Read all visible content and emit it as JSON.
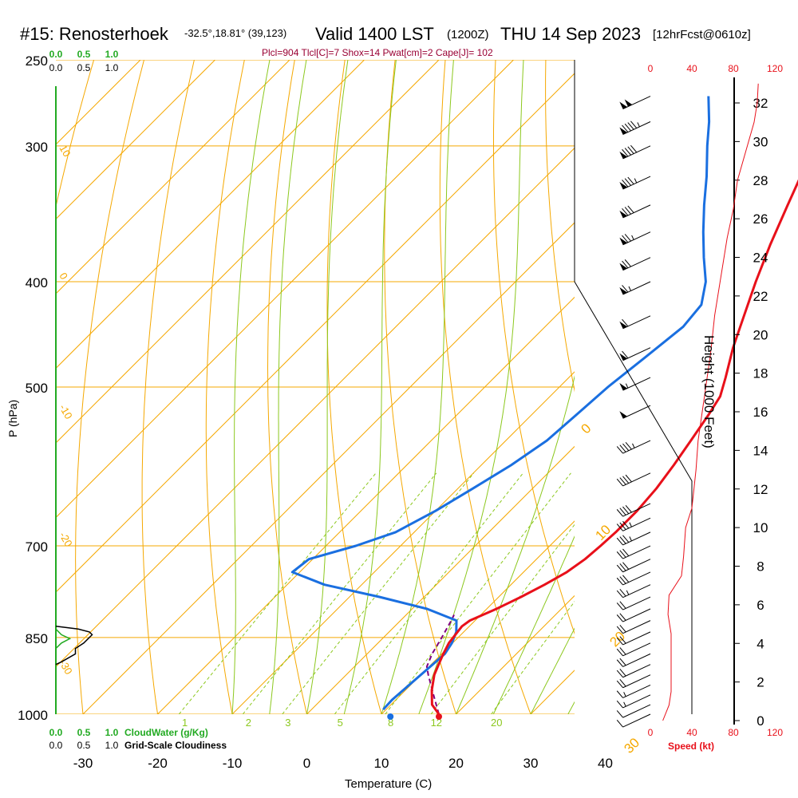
{
  "header": {
    "station": "#15: Renosterhoek",
    "location": "-32.5°,18.81° (39,123)",
    "valid": "Valid 1400 LST",
    "valid_z": "(1200Z)",
    "date": "THU 14 Sep 2023",
    "forecast": "[12hrFcst@0610z]",
    "parcel_info": "Plcl=904 Tlcl[C]=7 Shox=14 Pwat[cm]=2 Cape[J]= 102"
  },
  "colors": {
    "temperature": "#e8101a",
    "dewpoint": "#1a6fe0",
    "isotherm": "#f5a800",
    "dry_adiabat": "#f5a800",
    "moist_adiabat": "#8cc81e",
    "mixing_ratio": "#8cc81e",
    "parcel": "#800080",
    "cloud_water": "#22aa22",
    "speed": "#e8101a"
  },
  "chart_data": {
    "type": "skew-t",
    "xlabel": "Temperature (C)",
    "ylabel": "P (hPa)",
    "right_label": "Height (1000 Feet)",
    "x_ticks": [
      "-30",
      "-20",
      "-10",
      "0",
      "10",
      "20",
      "30",
      "40"
    ],
    "x_tick_values": [
      -30,
      -20,
      -10,
      0,
      10,
      20,
      30,
      40
    ],
    "p_ticks": [
      "250",
      "300",
      "400",
      "500",
      "700",
      "850",
      "1000"
    ],
    "p_tick_values": [
      250,
      300,
      400,
      500,
      700,
      850,
      1000
    ],
    "height_ticks": [
      "0",
      "2",
      "4",
      "6",
      "8",
      "10",
      "12",
      "14",
      "16",
      "18",
      "20",
      "22",
      "24",
      "26",
      "28",
      "30",
      "32"
    ],
    "height_tick_values": [
      0,
      2,
      4,
      6,
      8,
      10,
      12,
      14,
      16,
      18,
      20,
      22,
      24,
      26,
      28,
      30,
      32
    ],
    "speed_ticks_top": [
      "0",
      "40",
      "80",
      "120"
    ],
    "speed_ticks_bottom": [
      "0",
      "40",
      "80",
      "120"
    ],
    "speed_tick_values": [
      0,
      40,
      80,
      120
    ],
    "speed_label": "Speed (kt)",
    "cloud_scale_top": [
      "0.0",
      "0.5",
      "1.0"
    ],
    "cloud_scale_top2": [
      "0.0",
      "0.5",
      "1.0"
    ],
    "cloud_scale_bottom": [
      "0.0",
      "0.5",
      "1.0"
    ],
    "cloud_scale_bottom2": [
      "0.0",
      "0.5",
      "1.0"
    ],
    "cloud_water_label": "CloudWater (g/Kg)",
    "cloudiness_label": "Grid-Scale Cloudiness",
    "temperature_profile": [
      {
        "p": 1000,
        "t": 17.7
      },
      {
        "p": 980,
        "t": 15.5
      },
      {
        "p": 950,
        "t": 13.5
      },
      {
        "p": 920,
        "t": 11.8
      },
      {
        "p": 900,
        "t": 11.0
      },
      {
        "p": 880,
        "t": 10.2
      },
      {
        "p": 860,
        "t": 9.5
      },
      {
        "p": 830,
        "t": 9.0
      },
      {
        "p": 820,
        "t": 9.3
      },
      {
        "p": 800,
        "t": 11.3
      },
      {
        "p": 780,
        "t": 13.0
      },
      {
        "p": 760,
        "t": 14.5
      },
      {
        "p": 740,
        "t": 15.8
      },
      {
        "p": 720,
        "t": 16.5
      },
      {
        "p": 700,
        "t": 16.8
      },
      {
        "p": 680,
        "t": 17.0
      },
      {
        "p": 650,
        "t": 17.0
      },
      {
        "p": 620,
        "t": 16.6
      },
      {
        "p": 590,
        "t": 15.8
      },
      {
        "p": 560,
        "t": 14.8
      },
      {
        "p": 530,
        "t": 13.7
      },
      {
        "p": 510,
        "t": 12.8
      },
      {
        "p": 490,
        "t": 11.0
      },
      {
        "p": 460,
        "t": 8.0
      },
      {
        "p": 430,
        "t": 5.2
      },
      {
        "p": 400,
        "t": 2.2
      },
      {
        "p": 370,
        "t": -0.8
      },
      {
        "p": 340,
        "t": -3.8
      },
      {
        "p": 320,
        "t": -5.9
      },
      {
        "p": 300,
        "t": -7.2
      },
      {
        "p": 285,
        "t": -8.0
      },
      {
        "p": 270,
        "t": -9.2
      }
    ],
    "dewpoint_profile": [
      {
        "p": 990,
        "t": 9.6
      },
      {
        "p": 970,
        "t": 9.5
      },
      {
        "p": 940,
        "t": 9.8
      },
      {
        "p": 900,
        "t": 10.2
      },
      {
        "p": 880,
        "t": 10.4
      },
      {
        "p": 860,
        "t": 9.9
      },
      {
        "p": 840,
        "t": 9.0
      },
      {
        "p": 820,
        "t": 7.5
      },
      {
        "p": 800,
        "t": 2.0
      },
      {
        "p": 780,
        "t": -6.0
      },
      {
        "p": 760,
        "t": -15.0
      },
      {
        "p": 740,
        "t": -21.0
      },
      {
        "p": 720,
        "t": -20.5
      },
      {
        "p": 700,
        "t": -16.0
      },
      {
        "p": 680,
        "t": -12.5
      },
      {
        "p": 650,
        "t": -10.0
      },
      {
        "p": 620,
        "t": -8.0
      },
      {
        "p": 590,
        "t": -6.0
      },
      {
        "p": 560,
        "t": -4.5
      },
      {
        "p": 530,
        "t": -4.0
      },
      {
        "p": 500,
        "t": -3.5
      },
      {
        "p": 470,
        "t": -2.5
      },
      {
        "p": 440,
        "t": -1.5
      },
      {
        "p": 420,
        "t": -2.0
      },
      {
        "p": 400,
        "t": -4.5
      },
      {
        "p": 380,
        "t": -8.0
      },
      {
        "p": 360,
        "t": -11.5
      },
      {
        "p": 340,
        "t": -15.0
      },
      {
        "p": 320,
        "t": -18.5
      },
      {
        "p": 300,
        "t": -22.5
      },
      {
        "p": 285,
        "t": -25.5
      },
      {
        "p": 270,
        "t": -29.0
      }
    ],
    "parcel_profile": [
      {
        "p": 1000,
        "t": 17.7
      },
      {
        "p": 960,
        "t": 14.4
      },
      {
        "p": 920,
        "t": 11.0
      },
      {
        "p": 904,
        "t": 9.7
      },
      {
        "p": 880,
        "t": 8.7
      },
      {
        "p": 850,
        "t": 7.8
      },
      {
        "p": 820,
        "t": 6.8
      },
      {
        "p": 810,
        "t": 6.4
      }
    ],
    "surface_temp_marker": {
      "p": 1000,
      "t": 17.7
    },
    "surface_dew_marker": {
      "p": 1000,
      "t": 11.2
    },
    "isotherm_labels": [
      {
        "t": 0,
        "text": "0"
      },
      {
        "t": 10,
        "text": "10"
      },
      {
        "t": 20,
        "text": "20"
      },
      {
        "t": 30,
        "text": "30"
      }
    ],
    "dry_adiabat_labels": [
      {
        "theta": -10,
        "text": "10"
      },
      {
        "theta": 0,
        "text": "0"
      },
      {
        "theta": 10,
        "text": "-10"
      },
      {
        "theta": 20,
        "text": "-20"
      },
      {
        "theta": 30,
        "text": "-30"
      }
    ],
    "mixing_ratio_labels": [
      {
        "w": 1,
        "text": "1"
      },
      {
        "w": 2,
        "text": "2"
      },
      {
        "w": 3,
        "text": "3"
      },
      {
        "w": 5,
        "text": "5"
      },
      {
        "w": 8,
        "text": "8"
      },
      {
        "w": 12,
        "text": "12"
      },
      {
        "w": 20,
        "text": "20"
      }
    ],
    "wind_speed_profile": [
      {
        "h": 0.0,
        "v": 12
      },
      {
        "h": 0.8,
        "v": 18
      },
      {
        "h": 1.5,
        "v": 20
      },
      {
        "h": 3.0,
        "v": 20
      },
      {
        "h": 4.5,
        "v": 20
      },
      {
        "h": 5.5,
        "v": 17
      },
      {
        "h": 6.5,
        "v": 18
      },
      {
        "h": 7.5,
        "v": 30
      },
      {
        "h": 8.5,
        "v": 32
      },
      {
        "h": 10.0,
        "v": 34
      },
      {
        "h": 11.0,
        "v": 40
      },
      {
        "h": 12.0,
        "v": 42
      },
      {
        "h": 13.0,
        "v": 44
      },
      {
        "h": 14.5,
        "v": 46
      },
      {
        "h": 16.0,
        "v": 50
      },
      {
        "h": 17.5,
        "v": 54
      },
      {
        "h": 19.0,
        "v": 58
      },
      {
        "h": 21.0,
        "v": 62
      },
      {
        "h": 23.0,
        "v": 68
      },
      {
        "h": 25.0,
        "v": 74
      },
      {
        "h": 26.5,
        "v": 80
      },
      {
        "h": 28.0,
        "v": 84
      },
      {
        "h": 29.5,
        "v": 92
      },
      {
        "h": 31.0,
        "v": 100
      },
      {
        "h": 32.0,
        "v": 103
      },
      {
        "h": 33.0,
        "v": 104
      }
    ],
    "wind_barbs": [
      {
        "p": 270,
        "speed": 100
      },
      {
        "p": 285,
        "speed": 95
      },
      {
        "p": 300,
        "speed": 90
      },
      {
        "p": 320,
        "speed": 85
      },
      {
        "p": 340,
        "speed": 80
      },
      {
        "p": 360,
        "speed": 75
      },
      {
        "p": 380,
        "speed": 72
      },
      {
        "p": 400,
        "speed": 68
      },
      {
        "p": 430,
        "speed": 64
      },
      {
        "p": 460,
        "speed": 60
      },
      {
        "p": 490,
        "speed": 56
      },
      {
        "p": 520,
        "speed": 52
      },
      {
        "p": 560,
        "speed": 48
      },
      {
        "p": 600,
        "speed": 44
      },
      {
        "p": 640,
        "speed": 40
      },
      {
        "p": 660,
        "speed": 38
      },
      {
        "p": 680,
        "speed": 36
      },
      {
        "p": 700,
        "speed": 34
      },
      {
        "p": 720,
        "speed": 32
      },
      {
        "p": 740,
        "speed": 30
      },
      {
        "p": 760,
        "speed": 26
      },
      {
        "p": 780,
        "speed": 22
      },
      {
        "p": 800,
        "speed": 20
      },
      {
        "p": 820,
        "speed": 20
      },
      {
        "p": 840,
        "speed": 20
      },
      {
        "p": 860,
        "speed": 20
      },
      {
        "p": 880,
        "speed": 20
      },
      {
        "p": 900,
        "speed": 20
      },
      {
        "p": 920,
        "speed": 20
      },
      {
        "p": 940,
        "speed": 18
      },
      {
        "p": 960,
        "speed": 15
      },
      {
        "p": 980,
        "speed": 12
      },
      {
        "p": 1000,
        "speed": 10
      }
    ],
    "cloudiness_profile": [
      {
        "p": 830,
        "c": 0.0
      },
      {
        "p": 835,
        "c": 0.4
      },
      {
        "p": 840,
        "c": 0.6
      },
      {
        "p": 845,
        "c": 0.65
      },
      {
        "p": 860,
        "c": 0.5
      },
      {
        "p": 870,
        "c": 0.35
      },
      {
        "p": 880,
        "c": 0.35
      },
      {
        "p": 895,
        "c": 0.1
      },
      {
        "p": 900,
        "c": 0.0
      }
    ],
    "cloud_water_profile": [
      {
        "p": 835,
        "c": 0.0
      },
      {
        "p": 845,
        "c": 0.1
      },
      {
        "p": 852,
        "c": 0.25
      },
      {
        "p": 860,
        "c": 0.1
      },
      {
        "p": 870,
        "c": 0.0
      }
    ]
  }
}
